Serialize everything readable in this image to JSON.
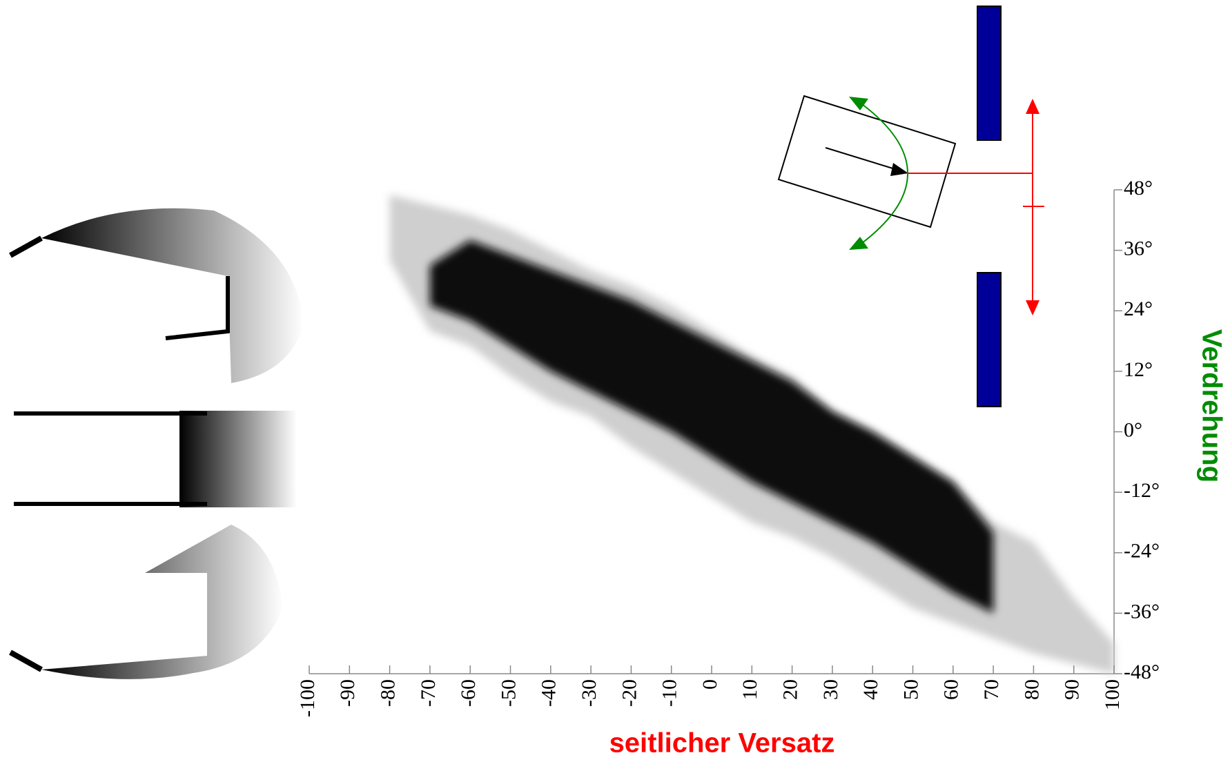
{
  "chart_data": {
    "type": "band",
    "x_label": "seitlicher Versatz",
    "x_label_color": "#ff0000",
    "y_label": "Verdrehung",
    "y_label_color": "#008c00",
    "x": [
      -80,
      -70,
      -60,
      -50,
      -40,
      -30,
      -20,
      -10,
      0,
      10,
      20,
      30,
      40,
      50,
      60,
      70,
      80,
      90,
      100
    ],
    "bands": [
      {
        "color": "#cfcfcf",
        "upper": [
          47,
          45,
          43,
          40,
          36,
          32,
          29,
          25,
          20,
          15,
          11,
          4,
          0,
          -5,
          -10,
          -18,
          -22,
          -33,
          -42
        ],
        "lower": [
          34,
          20,
          17,
          11,
          6,
          3,
          -3,
          -8,
          -13,
          -18,
          -21,
          -25,
          -30,
          -35,
          -38,
          -41,
          -44,
          -46,
          -48
        ]
      },
      {
        "color": "#111111",
        "upper": [
          null,
          33,
          38,
          35,
          32,
          29,
          26,
          22,
          18,
          14,
          10,
          4,
          0,
          -5,
          -10,
          -20,
          null,
          null,
          null
        ],
        "lower": [
          null,
          25,
          22,
          17,
          12,
          8,
          4,
          0,
          -5,
          -10,
          -14,
          -18,
          -22,
          -27,
          -32,
          -36,
          null,
          null,
          null
        ]
      }
    ],
    "xlim": [
      -100,
      100
    ],
    "ylim": [
      -48,
      48
    ],
    "xticks": [
      -100,
      -90,
      -80,
      -70,
      -60,
      -50,
      -40,
      -30,
      -20,
      -10,
      0,
      10,
      20,
      30,
      40,
      50,
      60,
      70,
      80,
      90,
      100
    ],
    "yticks": [
      {
        "value": -48,
        "label": "-48°"
      },
      {
        "value": -36,
        "label": "-36°"
      },
      {
        "value": -24,
        "label": "-24°"
      },
      {
        "value": -12,
        "label": "-12°"
      },
      {
        "value": 0,
        "label": "0°"
      },
      {
        "value": 12,
        "label": "12°"
      },
      {
        "value": 24,
        "label": "24°"
      },
      {
        "value": 36,
        "label": "36°"
      },
      {
        "value": 48,
        "label": "48°"
      }
    ]
  }
}
